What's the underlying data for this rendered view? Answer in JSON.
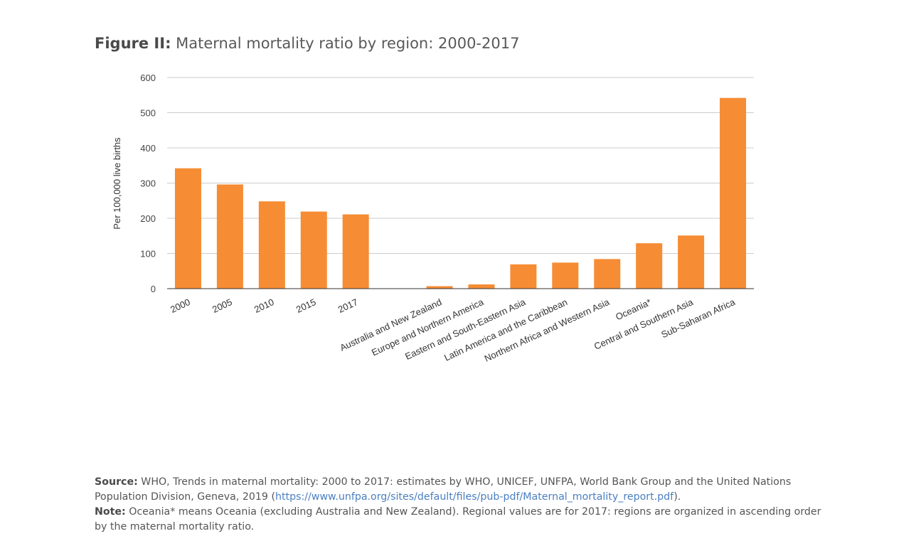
{
  "figure": {
    "lead": "Figure II:",
    "title": "Maternal mortality ratio by region: 2000-2017"
  },
  "chart_data": {
    "type": "bar",
    "ylabel": "Per 100,000 live births",
    "ylim": [
      0,
      600
    ],
    "yticks": [
      "0",
      "100",
      "200",
      "300",
      "400",
      "500",
      "600"
    ],
    "grid": true,
    "bar_color": "#f68c34",
    "categories": [
      "2000",
      "2005",
      "2010",
      "2015",
      "2017",
      "",
      "Australia and New Zealand",
      "Europe and Northern America",
      "Eastern and South-Eastern Asia",
      "Latin America and the Caribbean",
      "Northern Africa and Western Asia",
      "Oceania*",
      "Central and Southern Asia",
      "Sub-Saharan Africa"
    ],
    "values": [
      342,
      296,
      248,
      219,
      211,
      null,
      7,
      12,
      69,
      74,
      84,
      129,
      151,
      542
    ]
  },
  "notes": {
    "source_label": "Source:",
    "source_text": "WHO, Trends in maternal mortality: 2000 to 2017: estimates by WHO, UNICEF, UNFPA, World Bank Group and the United Nations Population Division, Geneva, 2019 (",
    "source_link": "https://www.unfpa.org/sites/default/files/pub-pdf/Maternal_mortality_report.pdf",
    "source_end": ").",
    "note_label": "Note:",
    "note_text": "Oceania* means Oceania (excluding Australia and New Zealand). Regional values are for 2017: regions are organized in ascending order by the maternal mortality ratio."
  }
}
